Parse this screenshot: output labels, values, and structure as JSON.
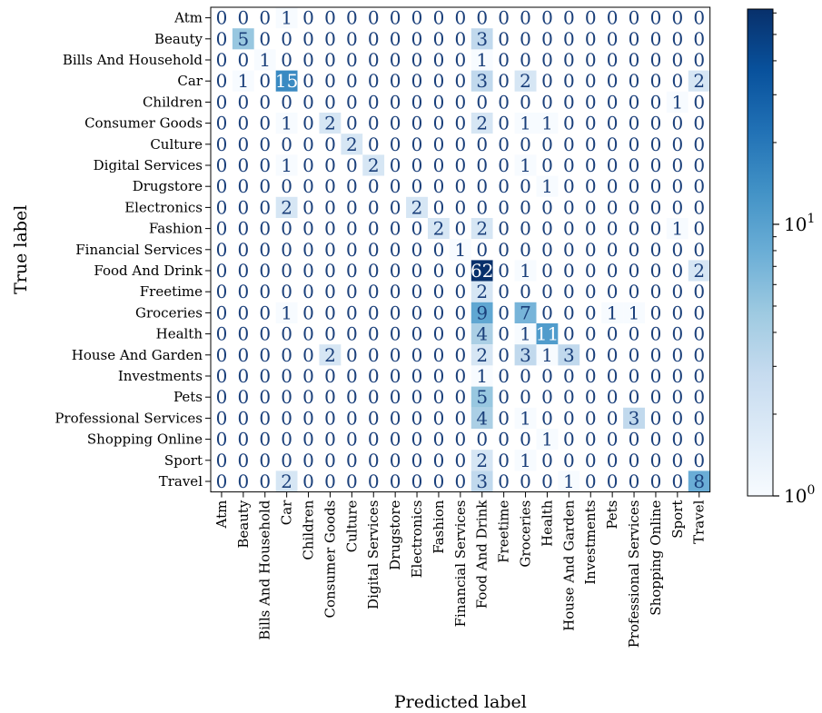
{
  "chart_data": {
    "type": "heatmap",
    "title": "",
    "xlabel": "Predicted label",
    "ylabel": "True label",
    "labels": [
      "Atm",
      "Beauty",
      "Bills And Household",
      "Car",
      "Children",
      "Consumer Goods",
      "Culture",
      "Digital Services",
      "Drugstore",
      "Electronics",
      "Fashion",
      "Financial Services",
      "Food And Drink",
      "Freetime",
      "Groceries",
      "Health",
      "House And Garden",
      "Investments",
      "Pets",
      "Professional Services",
      "Shopping Online",
      "Sport",
      "Travel"
    ],
    "matrix": [
      [
        0,
        0,
        0,
        1,
        0,
        0,
        0,
        0,
        0,
        0,
        0,
        0,
        0,
        0,
        0,
        0,
        0,
        0,
        0,
        0,
        0,
        0,
        0
      ],
      [
        0,
        5,
        0,
        0,
        0,
        0,
        0,
        0,
        0,
        0,
        0,
        0,
        3,
        0,
        0,
        0,
        0,
        0,
        0,
        0,
        0,
        0,
        0
      ],
      [
        0,
        0,
        1,
        0,
        0,
        0,
        0,
        0,
        0,
        0,
        0,
        0,
        1,
        0,
        0,
        0,
        0,
        0,
        0,
        0,
        0,
        0,
        0
      ],
      [
        0,
        1,
        0,
        15,
        0,
        0,
        0,
        0,
        0,
        0,
        0,
        0,
        3,
        0,
        2,
        0,
        0,
        0,
        0,
        0,
        0,
        0,
        2
      ],
      [
        0,
        0,
        0,
        0,
        0,
        0,
        0,
        0,
        0,
        0,
        0,
        0,
        0,
        0,
        0,
        0,
        0,
        0,
        0,
        0,
        0,
        1,
        0
      ],
      [
        0,
        0,
        0,
        1,
        0,
        2,
        0,
        0,
        0,
        0,
        0,
        0,
        2,
        0,
        1,
        1,
        0,
        0,
        0,
        0,
        0,
        0,
        0
      ],
      [
        0,
        0,
        0,
        0,
        0,
        0,
        2,
        0,
        0,
        0,
        0,
        0,
        0,
        0,
        0,
        0,
        0,
        0,
        0,
        0,
        0,
        0,
        0
      ],
      [
        0,
        0,
        0,
        1,
        0,
        0,
        0,
        2,
        0,
        0,
        0,
        0,
        0,
        0,
        1,
        0,
        0,
        0,
        0,
        0,
        0,
        0,
        0
      ],
      [
        0,
        0,
        0,
        0,
        0,
        0,
        0,
        0,
        0,
        0,
        0,
        0,
        0,
        0,
        0,
        1,
        0,
        0,
        0,
        0,
        0,
        0,
        0
      ],
      [
        0,
        0,
        0,
        2,
        0,
        0,
        0,
        0,
        0,
        2,
        0,
        0,
        0,
        0,
        0,
        0,
        0,
        0,
        0,
        0,
        0,
        0,
        0
      ],
      [
        0,
        0,
        0,
        0,
        0,
        0,
        0,
        0,
        0,
        0,
        2,
        0,
        2,
        0,
        0,
        0,
        0,
        0,
        0,
        0,
        0,
        1,
        0
      ],
      [
        0,
        0,
        0,
        0,
        0,
        0,
        0,
        0,
        0,
        0,
        0,
        1,
        0,
        0,
        0,
        0,
        0,
        0,
        0,
        0,
        0,
        0,
        0
      ],
      [
        0,
        0,
        0,
        0,
        0,
        0,
        0,
        0,
        0,
        0,
        0,
        0,
        62,
        0,
        1,
        0,
        0,
        0,
        0,
        0,
        0,
        0,
        2
      ],
      [
        0,
        0,
        0,
        0,
        0,
        0,
        0,
        0,
        0,
        0,
        0,
        0,
        2,
        0,
        0,
        0,
        0,
        0,
        0,
        0,
        0,
        0,
        0
      ],
      [
        0,
        0,
        0,
        1,
        0,
        0,
        0,
        0,
        0,
        0,
        0,
        0,
        9,
        0,
        7,
        0,
        0,
        0,
        1,
        1,
        0,
        0,
        0
      ],
      [
        0,
        0,
        0,
        0,
        0,
        0,
        0,
        0,
        0,
        0,
        0,
        0,
        4,
        0,
        1,
        11,
        0,
        0,
        0,
        0,
        0,
        0,
        0
      ],
      [
        0,
        0,
        0,
        0,
        0,
        2,
        0,
        0,
        0,
        0,
        0,
        0,
        2,
        0,
        3,
        1,
        3,
        0,
        0,
        0,
        0,
        0,
        0
      ],
      [
        0,
        0,
        0,
        0,
        0,
        0,
        0,
        0,
        0,
        0,
        0,
        0,
        1,
        0,
        0,
        0,
        0,
        0,
        0,
        0,
        0,
        0,
        0
      ],
      [
        0,
        0,
        0,
        0,
        0,
        0,
        0,
        0,
        0,
        0,
        0,
        0,
        5,
        0,
        0,
        0,
        0,
        0,
        0,
        0,
        0,
        0,
        0
      ],
      [
        0,
        0,
        0,
        0,
        0,
        0,
        0,
        0,
        0,
        0,
        0,
        0,
        4,
        0,
        1,
        0,
        0,
        0,
        0,
        3,
        0,
        0,
        0
      ],
      [
        0,
        0,
        0,
        0,
        0,
        0,
        0,
        0,
        0,
        0,
        0,
        0,
        0,
        0,
        0,
        1,
        0,
        0,
        0,
        0,
        0,
        0,
        0
      ],
      [
        0,
        0,
        0,
        0,
        0,
        0,
        0,
        0,
        0,
        0,
        0,
        0,
        2,
        0,
        1,
        0,
        0,
        0,
        0,
        0,
        0,
        0,
        0
      ],
      [
        0,
        0,
        0,
        2,
        0,
        0,
        0,
        0,
        0,
        0,
        0,
        0,
        3,
        0,
        0,
        0,
        1,
        0,
        0,
        0,
        0,
        0,
        8
      ]
    ],
    "color_scale": "log",
    "colormap": "Blues",
    "colorbar": {
      "ticks": [
        {
          "value": 1,
          "base": "10",
          "exp": "0"
        },
        {
          "value": 10,
          "base": "10",
          "exp": "1"
        }
      ],
      "range": [
        1,
        62
      ]
    },
    "zero_cells": "white (masked on log scale)",
    "grid": false
  }
}
